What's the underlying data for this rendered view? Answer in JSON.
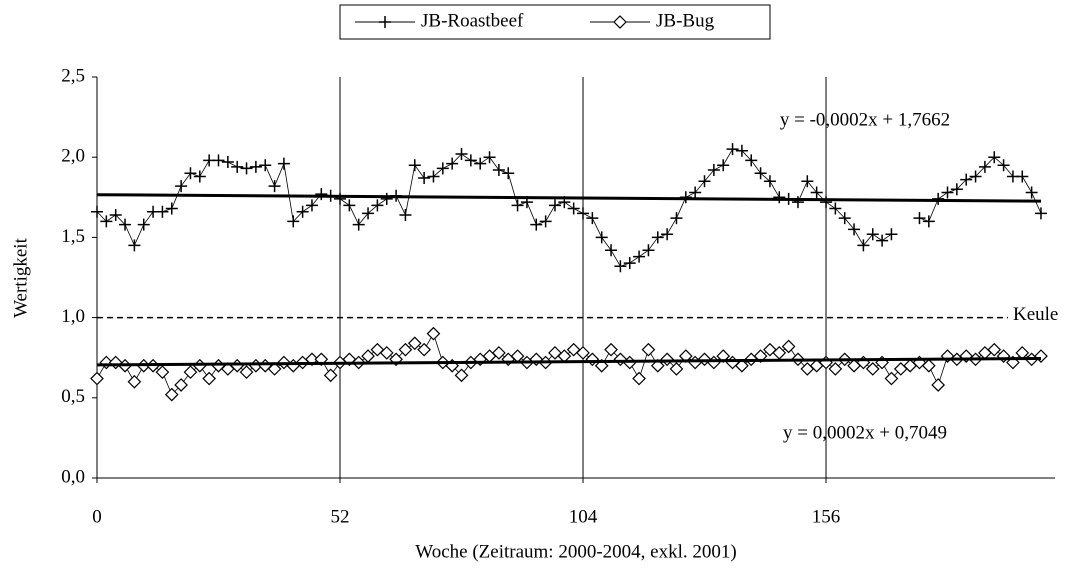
{
  "chart_data": {
    "type": "line",
    "xlabel": "Woche (Zeitraum: 2000-2004, exkl. 2001)",
    "ylabel": "Wertigkeit",
    "xlim": [
      0,
      205
    ],
    "xticks": [
      0,
      52,
      104,
      156
    ],
    "ylim": [
      0,
      2.5
    ],
    "yticks": [
      {
        "value": 0,
        "label": "0,0"
      },
      {
        "value": 0.5,
        "label": "0,5"
      },
      {
        "value": 1.0,
        "label": "1,0"
      },
      {
        "value": 1.5,
        "label": "1,5"
      },
      {
        "value": 2.0,
        "label": "2,0"
      },
      {
        "value": 2.5,
        "label": "2,5"
      }
    ],
    "grid_x": true,
    "legend": "top",
    "x": [
      0,
      2,
      4,
      6,
      8,
      10,
      12,
      14,
      16,
      18,
      20,
      22,
      24,
      26,
      28,
      30,
      32,
      34,
      36,
      38,
      40,
      42,
      44,
      46,
      48,
      50,
      52,
      54,
      56,
      58,
      60,
      62,
      64,
      66,
      68,
      70,
      72,
      74,
      76,
      78,
      80,
      82,
      84,
      86,
      88,
      90,
      92,
      94,
      96,
      98,
      100,
      102,
      104,
      106,
      108,
      110,
      112,
      114,
      116,
      118,
      120,
      122,
      124,
      126,
      128,
      130,
      132,
      134,
      136,
      138,
      140,
      142,
      144,
      146,
      148,
      150,
      152,
      154,
      156,
      158,
      160,
      162,
      164,
      166,
      168,
      170,
      172,
      174,
      176,
      178,
      180,
      182,
      184,
      186,
      188,
      190,
      192,
      194,
      196,
      198,
      200,
      202
    ],
    "series": [
      {
        "name": "JB-Roastbeef",
        "color": "#000000",
        "marker": "plus",
        "values": [
          1.66,
          1.6,
          1.64,
          1.58,
          1.45,
          1.58,
          1.66,
          1.66,
          1.68,
          1.82,
          1.9,
          1.88,
          1.98,
          1.98,
          1.97,
          1.94,
          1.93,
          1.94,
          1.95,
          1.82,
          1.96,
          1.6,
          1.66,
          1.7,
          1.77,
          1.76,
          1.74,
          1.7,
          1.58,
          1.65,
          1.7,
          1.74,
          1.76,
          1.64,
          1.95,
          1.87,
          1.88,
          1.93,
          1.96,
          2.02,
          1.98,
          1.96,
          2.0,
          1.92,
          1.9,
          1.7,
          1.72,
          1.58,
          1.6,
          1.7,
          1.72,
          1.68,
          1.65,
          1.62,
          1.5,
          1.42,
          1.32,
          1.34,
          1.38,
          1.42,
          1.5,
          1.52,
          1.62,
          1.75,
          1.78,
          1.85,
          1.92,
          1.95,
          2.05,
          2.04,
          1.98,
          1.9,
          1.85,
          1.75,
          1.74,
          1.72,
          1.85,
          1.78,
          1.72,
          1.68,
          1.62,
          1.55,
          1.45,
          1.52,
          1.48,
          1.52,
          null,
          null,
          1.62,
          1.6,
          1.74,
          1.78,
          1.8,
          1.86,
          1.88,
          1.94,
          2.0,
          1.95,
          1.88,
          1.88,
          1.78,
          1.65
        ]
      },
      {
        "name": "JB-Bug",
        "color": "#000000",
        "marker": "diamond",
        "values": [
          0.62,
          0.72,
          0.72,
          0.7,
          0.6,
          0.7,
          0.7,
          0.66,
          0.52,
          0.58,
          0.66,
          0.7,
          0.62,
          0.7,
          0.68,
          0.7,
          0.66,
          0.7,
          0.7,
          0.68,
          0.72,
          0.7,
          0.72,
          0.74,
          0.74,
          0.64,
          0.72,
          0.74,
          0.72,
          0.76,
          0.8,
          0.78,
          0.74,
          0.8,
          0.84,
          0.8,
          0.9,
          0.72,
          0.7,
          0.64,
          0.72,
          0.74,
          0.76,
          0.78,
          0.74,
          0.76,
          0.72,
          0.74,
          0.72,
          0.78,
          0.76,
          0.8,
          0.78,
          0.74,
          0.7,
          0.8,
          0.74,
          0.72,
          0.62,
          0.8,
          0.7,
          0.74,
          0.68,
          0.76,
          0.72,
          0.74,
          0.72,
          0.76,
          0.72,
          0.7,
          0.74,
          0.76,
          0.8,
          0.78,
          0.82,
          0.74,
          0.68,
          0.7,
          0.72,
          0.68,
          0.74,
          0.7,
          0.72,
          0.68,
          0.72,
          0.62,
          0.68,
          0.7,
          0.72,
          0.7,
          0.58,
          0.76,
          0.74,
          0.76,
          0.74,
          0.78,
          0.8,
          0.76,
          0.72,
          0.78,
          0.74,
          0.76
        ]
      }
    ],
    "trendlines": [
      {
        "label": "y = -0,0002x + 1,7662",
        "slope": -0.0002,
        "intercept": 1.7662
      },
      {
        "label": "y = 0,0002x + 0,7049",
        "slope": 0.0002,
        "intercept": 0.7049
      }
    ],
    "reference_line": {
      "value": 1.0,
      "label": "Keule"
    }
  }
}
